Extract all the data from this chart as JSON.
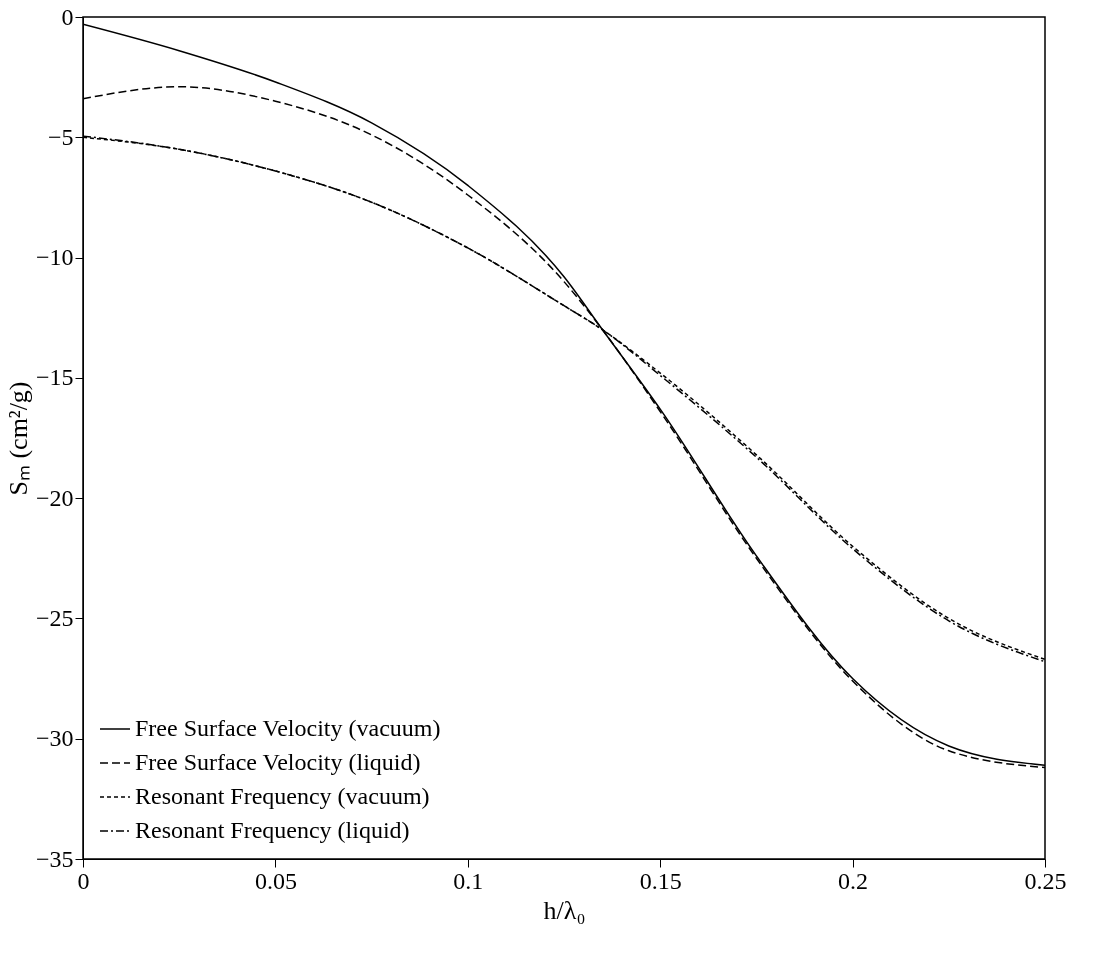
{
  "chart_data": {
    "type": "line",
    "xlabel": "h/λ₀",
    "ylabel": "Sₘ (cm²/g)",
    "xlim": [
      0,
      0.25
    ],
    "ylim": [
      -35,
      0
    ],
    "xticks": [
      0,
      0.05,
      0.1,
      0.15,
      0.2,
      0.25
    ],
    "yticks": [
      -35,
      -30,
      -25,
      -20,
      -15,
      -10,
      -5,
      0
    ],
    "grid": false,
    "legend": "bottom left",
    "marker": "none",
    "x": [
      0,
      0.025,
      0.05,
      0.075,
      0.1,
      0.125,
      0.135,
      0.15,
      0.175,
      0.2,
      0.225,
      0.25
    ],
    "series": [
      {
        "name": "Free Surface Velocity (vacuum)",
        "color": "#000000",
        "line_style": "solid",
        "values": [
          -0.3,
          -1.4,
          -2.7,
          -4.4,
          -7.0,
          -10.8,
          -13.0,
          -16.3,
          -22.4,
          -27.5,
          -30.3,
          -31.1
        ]
      },
      {
        "name": "Free Surface Velocity (liquid)",
        "color": "#000000",
        "line_style": "dashed",
        "values": [
          -3.4,
          -2.9,
          -3.5,
          -4.9,
          -7.4,
          -11.0,
          -13.0,
          -16.4,
          -22.5,
          -27.6,
          -30.5,
          -31.2
        ]
      },
      {
        "name": "Resonant Frequency (vacuum)",
        "color": "#000000",
        "line_style": "dotted",
        "values": [
          -5.0,
          -5.5,
          -6.4,
          -7.7,
          -9.6,
          -12.0,
          -13.0,
          -14.8,
          -18.2,
          -22.0,
          -25.0,
          -26.7
        ]
      },
      {
        "name": "Resonant Frequency (liquid)",
        "color": "#000000",
        "line_style": "dashdot",
        "values": [
          -4.95,
          -5.5,
          -6.4,
          -7.7,
          -9.6,
          -12.0,
          -13.0,
          -14.9,
          -18.3,
          -22.1,
          -25.1,
          -26.8
        ]
      }
    ]
  }
}
